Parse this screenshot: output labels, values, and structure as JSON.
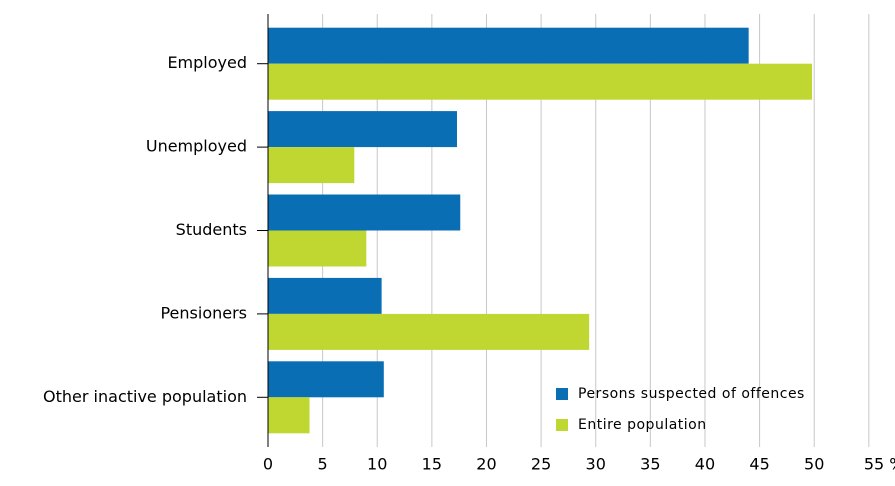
{
  "chart_data": {
    "type": "hbar",
    "categories": [
      "Employed",
      "Unemployed",
      "Students",
      "Pensioners",
      "Other inactive population"
    ],
    "series": [
      {
        "name": "Persons suspected of offences",
        "color": "#0a6eb4",
        "values": [
          44.0,
          17.3,
          17.6,
          10.4,
          10.6
        ]
      },
      {
        "name": "Entire population",
        "color": "#bfd730",
        "values": [
          49.8,
          7.9,
          9.0,
          29.4,
          3.8
        ]
      }
    ],
    "xlim": [
      0,
      55
    ],
    "xticks": [
      0,
      5,
      10,
      15,
      20,
      25,
      30,
      35,
      40,
      45,
      50,
      {
        "value": 55,
        "label": "55 %"
      }
    ],
    "grid": true,
    "legend": "lower right"
  }
}
